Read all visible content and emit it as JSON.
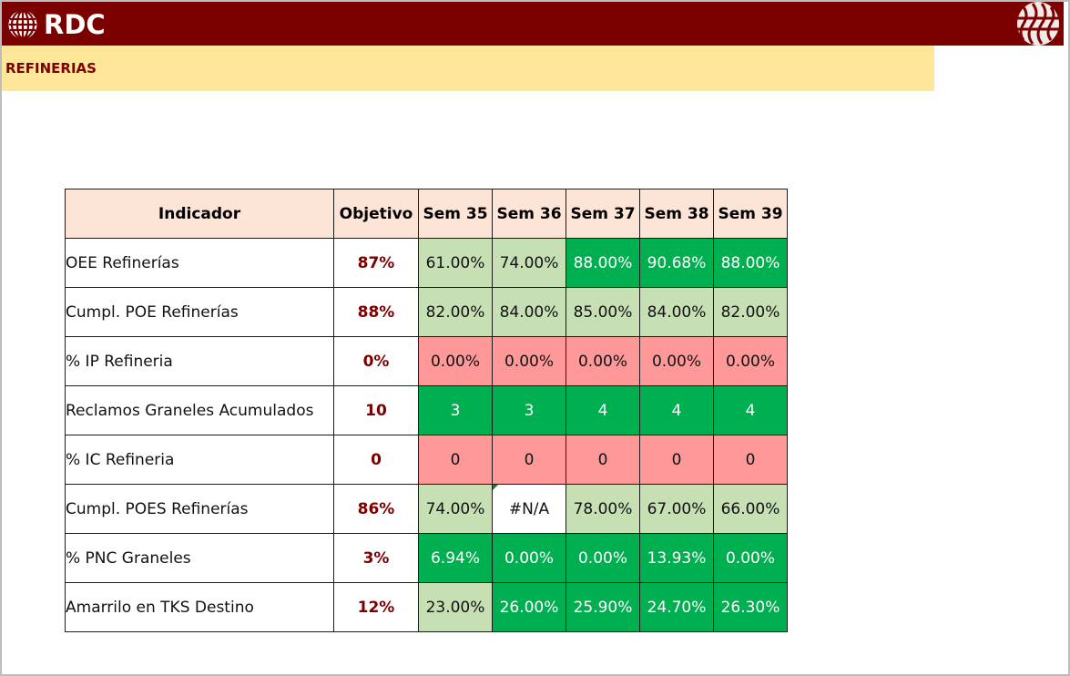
{
  "header": {
    "logo_text": "RDC",
    "logo_icon": "rdc-globe-icon",
    "emblem_icon": "corner-emblem-icon"
  },
  "section": {
    "title": "REFINERIAS"
  },
  "table": {
    "columns": [
      "Indicador",
      "Objetivo",
      "Sem 35",
      "Sem 36",
      "Sem 37",
      "Sem 38",
      "Sem 39"
    ],
    "rows": [
      {
        "indicador": "OEE Refinerías",
        "objetivo": "87%",
        "values": [
          "61.00%",
          "74.00%",
          "88.00%",
          "90.68%",
          "88.00%"
        ],
        "status": [
          "lg",
          "lg",
          "dg",
          "dg",
          "dg"
        ]
      },
      {
        "indicador": "Cumpl. POE Refinerías",
        "objetivo": "88%",
        "values": [
          "82.00%",
          "84.00%",
          "85.00%",
          "84.00%",
          "82.00%"
        ],
        "status": [
          "lg",
          "lg",
          "lg",
          "lg",
          "lg"
        ]
      },
      {
        "indicador": "% IP Refineria",
        "objetivo": "0%",
        "values": [
          "0.00%",
          "0.00%",
          "0.00%",
          "0.00%",
          "0.00%"
        ],
        "status": [
          "rd",
          "rd",
          "rd",
          "rd",
          "rd"
        ]
      },
      {
        "indicador": "Reclamos Graneles Acumulados",
        "objetivo": "10",
        "values": [
          "3",
          "3",
          "4",
          "4",
          "4"
        ],
        "status": [
          "dg",
          "dg",
          "dg",
          "dg",
          "dg"
        ]
      },
      {
        "indicador": "% IC Refineria",
        "objetivo": "0",
        "values": [
          "0",
          "0",
          "0",
          "0",
          "0"
        ],
        "status": [
          "rd",
          "rd",
          "rd",
          "rd",
          "rd"
        ]
      },
      {
        "indicador": "Cumpl. POES Refinerías",
        "objetivo": "86%",
        "values": [
          "74.00%",
          "#N/A",
          "78.00%",
          "67.00%",
          "66.00%"
        ],
        "status": [
          "lg",
          "wh",
          "lg",
          "lg",
          "lg"
        ]
      },
      {
        "indicador": "% PNC Graneles",
        "objetivo": "3%",
        "values": [
          "6.94%",
          "0.00%",
          "0.00%",
          "13.93%",
          "0.00%"
        ],
        "status": [
          "dg",
          "dg",
          "dg",
          "dg",
          "dg"
        ]
      },
      {
        "indicador": "Amarrilo en TKS Destino",
        "objetivo": "12%",
        "values": [
          "23.00%",
          "26.00%",
          "25.90%",
          "24.70%",
          "26.30%"
        ],
        "status": [
          "lg",
          "dg",
          "dg",
          "dg",
          "dg"
        ]
      }
    ]
  },
  "colors": {
    "brand": "#7b0000",
    "banner": "#ffe699",
    "header_cell": "#fce4d6",
    "light_green": "#c6e0b4",
    "green": "#00b050",
    "red": "#ff9999"
  }
}
